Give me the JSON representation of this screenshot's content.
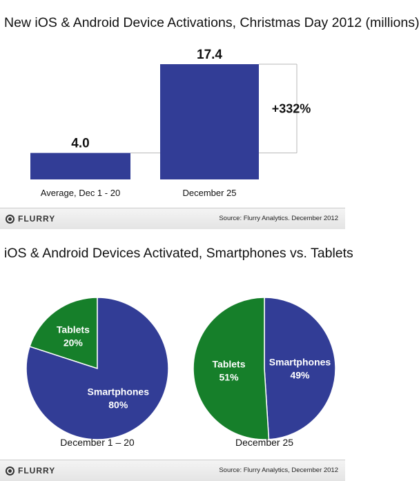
{
  "colors": {
    "blue": "#323d96",
    "green": "#167f2a",
    "guide": "#b8b8b8",
    "label_light": "#ffffff",
    "label_dark": "#111111"
  },
  "top_panel": {
    "title": "New iOS & Android Device Activations, Christmas Day 2012 (millions)",
    "change_label": "+332%",
    "logo_text": "FLURRY",
    "logo_icon": "flurry-logo-icon",
    "source": "Source: Flurry Analytics. December 2012"
  },
  "bottom_panel": {
    "title": "iOS & Android Devices Activated, Smartphones vs. Tablets",
    "logo_text": "FLURRY",
    "logo_icon": "flurry-logo-icon",
    "source": "Source: Flurry Analytics, December 2012"
  },
  "chart_data": [
    {
      "type": "bar",
      "title": "New iOS & Android Device Activations, Christmas Day 2012 (millions)",
      "categories": [
        "Average, Dec 1 - 20",
        "December 25"
      ],
      "values": [
        4.0,
        17.4
      ],
      "value_labels": [
        "4.0",
        "17.4"
      ],
      "annotation": "+332%",
      "grid": false
    },
    {
      "type": "pie",
      "title": "December 1 – 20",
      "slices": [
        {
          "label": "Tablets",
          "value": 20,
          "value_label": "20%",
          "color": "#167f2a"
        },
        {
          "label": "Smartphones",
          "value": 80,
          "value_label": "80%",
          "color": "#323d96"
        }
      ]
    },
    {
      "type": "pie",
      "title": "December 25",
      "slices": [
        {
          "label": "Smartphones",
          "value": 49,
          "value_label": "49%",
          "color": "#323d96"
        },
        {
          "label": "Tablets",
          "value": 51,
          "value_label": "51%",
          "color": "#167f2a"
        }
      ]
    }
  ]
}
